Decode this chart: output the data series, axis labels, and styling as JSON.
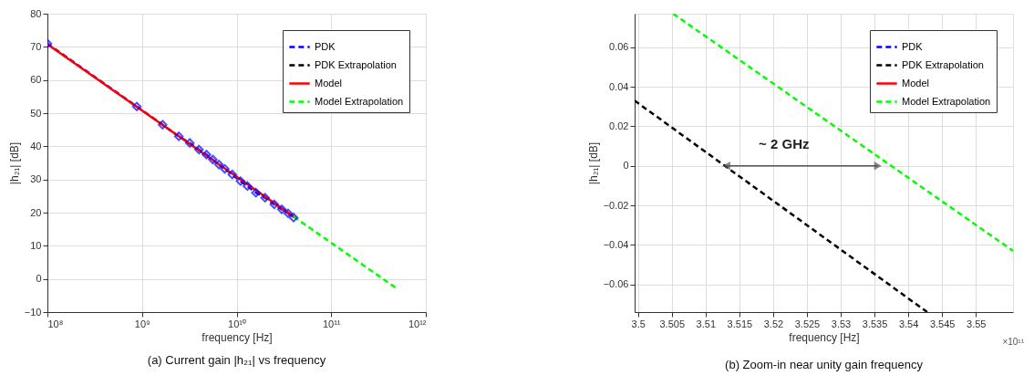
{
  "chart_data": [
    {
      "type": "line",
      "title": "(a) Current gain |h₂₁| vs frequency",
      "xlabel": "frequency [Hz]",
      "ylabel": "|h₂₁| [dB]",
      "log": "x",
      "grid": true,
      "legend": "top right",
      "xlim": [
        100000000.0,
        1000000000000.0
      ],
      "xticks": [
        {
          "value": 100000000.0,
          "label": "10⁸"
        },
        {
          "value": 1000000000.0,
          "label": "10⁹"
        },
        {
          "value": 10000000000.0,
          "label": "10¹⁰"
        },
        {
          "value": 100000000000.0,
          "label": "10¹¹"
        },
        {
          "value": 1000000000000.0,
          "label": "10¹²"
        }
      ],
      "ylim": [
        -10,
        80
      ],
      "yticks": [
        -10,
        0,
        10,
        20,
        30,
        40,
        50,
        60,
        70,
        80
      ],
      "series": [
        {
          "name": "PDK",
          "color": "#0000ff",
          "line_style": "dashed",
          "marker": "diamond",
          "x": [
            100000000.0,
            880000000.0,
            1650000000.0,
            2450000000.0,
            3200000000.0,
            4000000000.0,
            4800000000.0,
            5600000000.0,
            6500000000.0,
            7500000000.0,
            9000000000.0,
            11000000000.0,
            13000000000.0,
            16000000000.0,
            20000000000.0,
            25000000000.0,
            30000000000.0,
            35000000000.0,
            40000000000.0
          ],
          "values": [
            71,
            52,
            46.5,
            43,
            41,
            39,
            37.5,
            36,
            34.5,
            33.2,
            31.5,
            29.5,
            28,
            26,
            24.5,
            22.5,
            21,
            19.8,
            18.5
          ]
        },
        {
          "name": "PDK Extrapolation",
          "color": "#000000",
          "line_style": "dashed"
        },
        {
          "name": "Model",
          "color": "#ff0000",
          "line_style": "solid",
          "x": [
            100000000.0,
            40000000000.0
          ],
          "values": [
            70.8,
            18.8
          ]
        },
        {
          "name": "Model Extrapolation",
          "color": "#00ff00",
          "line_style": "dashed",
          "x": [
            40000000000.0,
            500000000000.0
          ],
          "values": [
            18.8,
            -3
          ]
        }
      ]
    },
    {
      "type": "line",
      "title": "(b) Zoom-in near unity gain frequency",
      "xlabel": "frequency [Hz]",
      "ylabel": "|h₂₁| [dB]",
      "grid": true,
      "legend": "top right",
      "xlim": [
        3.4995,
        3.5555
      ],
      "xticks": [
        3.5,
        3.505,
        3.51,
        3.515,
        3.52,
        3.525,
        3.53,
        3.535,
        3.54,
        3.545,
        3.55
      ],
      "ylim": [
        -0.074,
        0.077
      ],
      "yticks": [
        -0.06,
        -0.04,
        -0.02,
        {
          "value": 0,
          "label": "0"
        },
        0.02,
        0.04,
        0.06
      ],
      "annotations": [
        "~ 2 GHz",
        "×10¹¹"
      ],
      "series": [
        {
          "name": "PDK",
          "color": "#0000ff",
          "line_style": "dashed"
        },
        {
          "name": "PDK Extrapolation",
          "color": "#000000",
          "line_style": "dashed",
          "x": [
            3.4995,
            3.5428
          ],
          "values": [
            0.033,
            -0.074
          ]
        },
        {
          "name": "Model",
          "color": "#ff0000",
          "line_style": "solid"
        },
        {
          "name": "Model Extrapolation",
          "color": "#00ff00",
          "line_style": "dashed",
          "x": [
            3.5052,
            3.5555
          ],
          "values": [
            0.077,
            -0.043
          ]
        },
        {
          "type": "line",
          "color": "#555555",
          "line_style": "solid",
          "marker": "triangle",
          "x": [
            3.5131,
            3.5355
          ],
          "values": [
            0,
            0
          ]
        }
      ]
    }
  ]
}
